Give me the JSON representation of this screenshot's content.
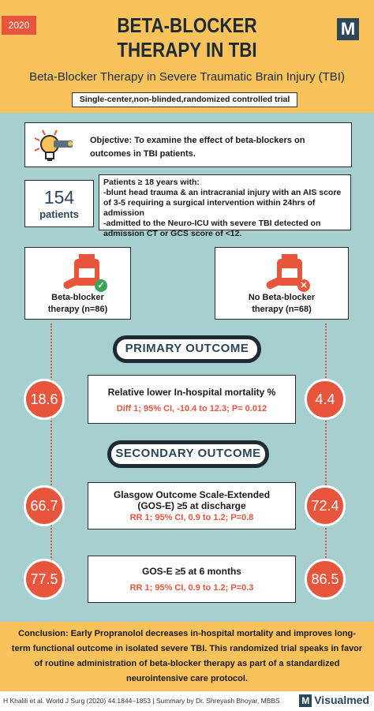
{
  "header": {
    "year": "2020",
    "logo_letter": "M",
    "title_line1": "BETA-BLOCKER",
    "title_line2": "THERAPY IN TBI",
    "subtitle": "Beta-Blocker Therapy in Severe Traumatic Brain Injury (TBI)",
    "study_design": "Single-center,non-blinded,randomized controlled trial"
  },
  "objective": {
    "icon": "lightbulb-icon",
    "text": "Objective: To examine the effect of beta-blockers on outcomes in TBI patients."
  },
  "patients": {
    "count": "154",
    "label": "patients",
    "criteria": [
      "Patients ≥ 18 years with:",
      "-blunt head trauma & an intracranial injury with an AIS score of 3-5 requiring a surgical intervention within 24hrs of admission",
      "-admitted to the Neuro-ICU with severe TBI detected on admission CT or GCS score of <12."
    ]
  },
  "arms": {
    "treatment": {
      "label_line1": "Beta-blocker",
      "label_line2": "therapy (n=86)",
      "icon": "check-icon"
    },
    "control": {
      "label_line1": "No Beta-blocker",
      "label_line2": "therapy (n=68)",
      "icon": "cross-icon"
    }
  },
  "primary": {
    "heading": "PRIMARY OUTCOME",
    "left_value": "18.6",
    "right_value": "4.4",
    "measure": "Relative lower In-hospital mortality %",
    "stats": "Diff 1; 95% CI, -10.4 to 12.3; P= 0.012"
  },
  "secondary": {
    "heading": "SECONDARY OUTCOME",
    "items": [
      {
        "left_value": "66.7",
        "right_value": "72.4",
        "measure_line1": "Glasgow Outcome Scale-Extended",
        "measure_line2": "(GOS-E) ≥5 at discharge",
        "stats": "RR 1; 95% CI, 0.9 to 1.2; P=0.8"
      },
      {
        "left_value": "77.5",
        "right_value": "86.5",
        "measure_line1": "GOS-E ≥5 at 6 months",
        "stats": "RR 1; 95% CI, 0.9 to 1.2; P=0.3"
      }
    ]
  },
  "conclusion": "Conclusion: Early Propranolol decreases in-hospital mortality and improves long-term functional outcome in isolated severe TBI. This randomized trial speaks in favor of routine administration of beta-blocker therapy as part of a standardized neurointensive care protocol.",
  "footer": {
    "citation": "H Khalili et al. World J Surg (2020) 44:1844–1853 | Summary by Dr. Shreyash Bhoyar, MBBS",
    "brand_letter": "M",
    "brand": "Visualmed"
  },
  "colors": {
    "accent": "#e8553d",
    "navy": "#2d4657",
    "teal": "#a7cfcf",
    "yellow": "#f9c25a"
  }
}
